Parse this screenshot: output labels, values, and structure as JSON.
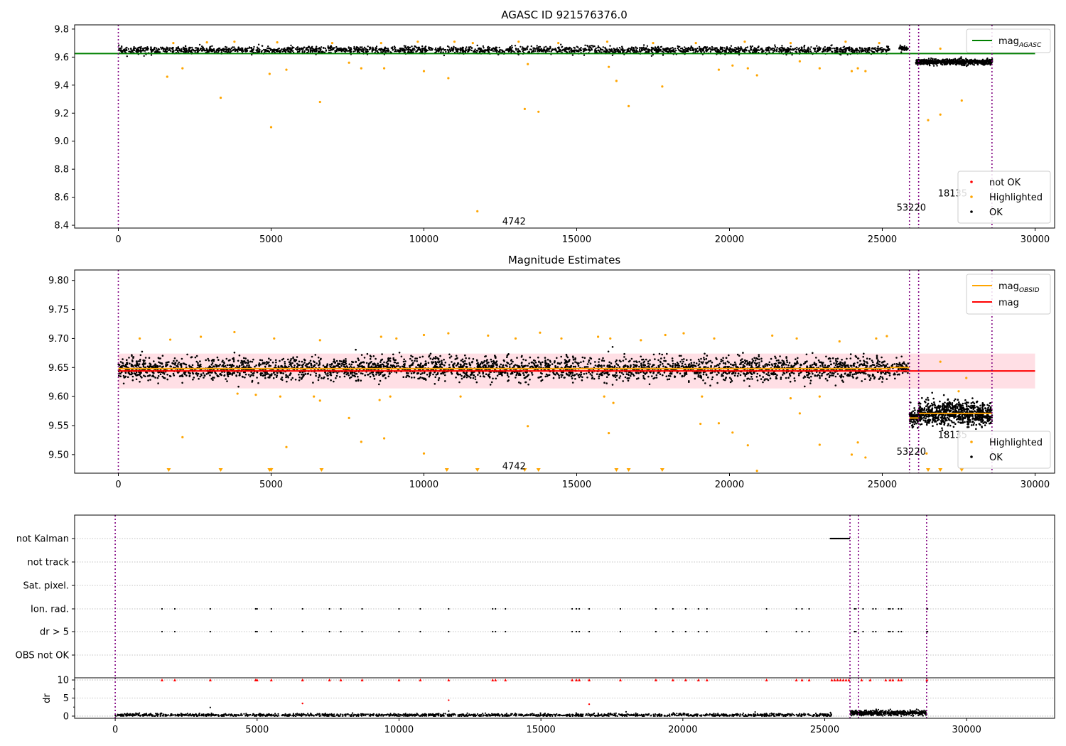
{
  "figure": {
    "colors": {
      "ok": "#000000",
      "highlighted": "#ffa500",
      "not_ok": "#ff0000",
      "agasc_line": "#008000",
      "obsid_line": "#ffa500",
      "mag_line": "#ff0000",
      "band": "#ffc0cb",
      "obsid_boundary": "#800080",
      "grid": "#b0b0b0"
    },
    "obsid_boundaries": [
      0,
      25890,
      26190,
      28590
    ]
  },
  "chart_data": [
    {
      "id": "top",
      "type": "scatter",
      "title": "AGASC ID 921576376.0",
      "xlim": [
        -1430,
        30640
      ],
      "ylim": [
        8.38,
        9.83
      ],
      "xticks": [
        0,
        5000,
        10000,
        15000,
        20000,
        25000,
        30000
      ],
      "yticks": [
        8.4,
        8.6,
        8.8,
        9.0,
        9.2,
        9.4,
        9.6,
        9.8
      ],
      "ytick_labels": [
        "8.4",
        "8.6",
        "8.8",
        "9.0",
        "9.2",
        "9.4",
        "9.6",
        "9.8"
      ],
      "legend_lines": {
        "placement": "upper-right",
        "entries": [
          {
            "label": "mag",
            "sub": "AGASC",
            "color": "#008000"
          }
        ]
      },
      "legend_points": {
        "placement": "lower-right",
        "entries": [
          {
            "label": "not OK",
            "color": "#ff0000"
          },
          {
            "label": "Highlighted",
            "color": "#ffa500"
          },
          {
            "label": "OK",
            "color": "#000000"
          }
        ]
      },
      "hlines": [
        {
          "y": 9.625,
          "x0": -1430,
          "x1": 30000,
          "color": "#008000"
        }
      ],
      "annotations": [
        {
          "text": "4742",
          "x": 12950,
          "y": 8.43
        },
        {
          "text": "53220",
          "x": 25950,
          "y": 8.53
        },
        {
          "text": "18135",
          "x": 27300,
          "y": 8.63
        }
      ],
      "ok_segments": [
        {
          "x0": 0,
          "x1": 25250,
          "center": 9.65,
          "spread": 0.028,
          "n": 2400
        },
        {
          "x0": 25550,
          "x1": 25850,
          "center": 9.665,
          "spread": 0.02,
          "n": 50
        },
        {
          "x0": 26100,
          "x1": 28600,
          "center": 9.565,
          "spread": 0.022,
          "n": 700
        }
      ],
      "highlighted": [
        [
          1600,
          9.46
        ],
        [
          2100,
          9.52
        ],
        [
          3350,
          9.31
        ],
        [
          4950,
          9.48
        ],
        [
          5000,
          9.1
        ],
        [
          5500,
          9.51
        ],
        [
          6600,
          9.28
        ],
        [
          7550,
          9.56
        ],
        [
          7950,
          9.52
        ],
        [
          8700,
          9.52
        ],
        [
          10000,
          9.5
        ],
        [
          10800,
          9.45
        ],
        [
          11750,
          8.5
        ],
        [
          13300,
          9.23
        ],
        [
          13400,
          9.55
        ],
        [
          13750,
          9.21
        ],
        [
          16050,
          9.53
        ],
        [
          16300,
          9.43
        ],
        [
          16700,
          9.25
        ],
        [
          17800,
          9.39
        ],
        [
          19650,
          9.51
        ],
        [
          20100,
          9.54
        ],
        [
          20600,
          9.52
        ],
        [
          20900,
          9.47
        ],
        [
          22300,
          9.57
        ],
        [
          22950,
          9.52
        ],
        [
          24000,
          9.5
        ],
        [
          24200,
          9.52
        ],
        [
          24450,
          9.5
        ],
        [
          26500,
          9.15
        ],
        [
          26900,
          9.19
        ],
        [
          26900,
          9.66
        ],
        [
          27600,
          9.29
        ],
        [
          1800,
          9.7
        ],
        [
          2900,
          9.705
        ],
        [
          3800,
          9.71
        ],
        [
          5200,
          9.705
        ],
        [
          7000,
          9.7
        ],
        [
          8600,
          9.7
        ],
        [
          9800,
          9.71
        ],
        [
          11000,
          9.71
        ],
        [
          11600,
          9.7
        ],
        [
          13100,
          9.71
        ],
        [
          14400,
          9.7
        ],
        [
          16000,
          9.71
        ],
        [
          17500,
          9.7
        ],
        [
          18900,
          9.7
        ],
        [
          20500,
          9.71
        ],
        [
          22000,
          9.7
        ],
        [
          23800,
          9.71
        ],
        [
          24900,
          9.7
        ]
      ]
    },
    {
      "id": "middle",
      "type": "scatter",
      "title": "Magnitude Estimates",
      "xlim": [
        -1430,
        30640
      ],
      "ylim": [
        9.468,
        9.818
      ],
      "xticks": [
        0,
        5000,
        10000,
        15000,
        20000,
        25000,
        30000
      ],
      "yticks": [
        9.5,
        9.55,
        9.6,
        9.65,
        9.7,
        9.75,
        9.8
      ],
      "ytick_labels": [
        "9.50",
        "9.55",
        "9.60",
        "9.65",
        "9.70",
        "9.75",
        "9.80"
      ],
      "legend_lines": {
        "placement": "upper-right",
        "entries": [
          {
            "label": "mag",
            "sub": "OBSID",
            "color": "#ffa500"
          },
          {
            "label": "mag",
            "sub": "",
            "color": "#ff0000"
          }
        ]
      },
      "legend_points": {
        "placement": "lower-right",
        "entries": [
          {
            "label": "Highlighted",
            "color": "#ffa500"
          },
          {
            "label": "OK",
            "color": "#000000"
          }
        ]
      },
      "band": {
        "y0": 9.614,
        "y1": 9.674,
        "x0": 0,
        "x1": 30000
      },
      "hlines": [
        {
          "y": 9.644,
          "x0": 0,
          "x1": 30000,
          "color": "#ff0000"
        },
        {
          "y": 9.648,
          "x0": 0,
          "x1": 25250,
          "color": "#ffa500"
        },
        {
          "y": 9.65,
          "x0": 25250,
          "x1": 25890,
          "color": "#ffa500"
        },
        {
          "y": 9.563,
          "x0": 25890,
          "x1": 26190,
          "color": "#ffa500"
        },
        {
          "y": 9.571,
          "x0": 26190,
          "x1": 28590,
          "color": "#ffa500"
        }
      ],
      "annotations": [
        {
          "text": "4742",
          "x": 12950,
          "y": 9.481
        },
        {
          "text": "53220",
          "x": 25950,
          "y": 9.506
        },
        {
          "text": "18135",
          "x": 27300,
          "y": 9.535
        }
      ],
      "ok_segments": [
        {
          "x0": 0,
          "x1": 25250,
          "center": 9.648,
          "spread": 0.022,
          "n": 3200
        },
        {
          "x0": 25300,
          "x1": 25850,
          "center": 9.65,
          "spread": 0.015,
          "n": 60
        },
        {
          "x0": 25890,
          "x1": 26190,
          "center": 9.563,
          "spread": 0.018,
          "n": 80
        },
        {
          "x0": 26190,
          "x1": 28600,
          "center": 9.571,
          "spread": 0.022,
          "n": 800
        }
      ],
      "highlighted": [
        [
          2100,
          9.53
        ],
        [
          3900,
          9.605
        ],
        [
          4500,
          9.603
        ],
        [
          5500,
          9.513
        ],
        [
          5300,
          9.6
        ],
        [
          6400,
          9.6
        ],
        [
          6600,
          9.593
        ],
        [
          7550,
          9.563
        ],
        [
          7950,
          9.522
        ],
        [
          8550,
          9.594
        ],
        [
          8700,
          9.528
        ],
        [
          8900,
          9.6
        ],
        [
          10000,
          9.502
        ],
        [
          11200,
          9.6
        ],
        [
          13400,
          9.549
        ],
        [
          15900,
          9.6
        ],
        [
          16050,
          9.537
        ],
        [
          16200,
          9.589
        ],
        [
          19050,
          9.553
        ],
        [
          19100,
          9.6
        ],
        [
          19650,
          9.554
        ],
        [
          20100,
          9.538
        ],
        [
          20600,
          9.516
        ],
        [
          22000,
          9.597
        ],
        [
          22300,
          9.571
        ],
        [
          22950,
          9.517
        ],
        [
          22950,
          9.6
        ],
        [
          24000,
          9.5
        ],
        [
          24200,
          9.521
        ],
        [
          24450,
          9.495
        ],
        [
          26450,
          9.502
        ],
        [
          26900,
          9.66
        ],
        [
          27500,
          9.609
        ],
        [
          27750,
          9.632
        ],
        [
          700,
          9.7
        ],
        [
          1700,
          9.698
        ],
        [
          2700,
          9.703
        ],
        [
          3800,
          9.711
        ],
        [
          5100,
          9.7
        ],
        [
          6600,
          9.697
        ],
        [
          8600,
          9.703
        ],
        [
          9100,
          9.7
        ],
        [
          10000,
          9.706
        ],
        [
          10800,
          9.709
        ],
        [
          12100,
          9.705
        ],
        [
          13000,
          9.7
        ],
        [
          13800,
          9.71
        ],
        [
          14500,
          9.7
        ],
        [
          15700,
          9.703
        ],
        [
          16100,
          9.7
        ],
        [
          17100,
          9.697
        ],
        [
          17900,
          9.706
        ],
        [
          18500,
          9.709
        ],
        [
          19500,
          9.7
        ],
        [
          21400,
          9.705
        ],
        [
          22200,
          9.7
        ],
        [
          23600,
          9.695
        ],
        [
          24800,
          9.7
        ],
        [
          25150,
          9.704
        ],
        [
          5000,
          9.475
        ],
        [
          20900,
          9.472
        ]
      ],
      "highlighted_markers": [
        1650,
        3350,
        4950,
        5000,
        6650,
        10750,
        11750,
        13300,
        13750,
        16300,
        16700,
        17800,
        26500,
        26900,
        27600
      ]
    },
    {
      "id": "flags",
      "type": "scatter",
      "xlim": [
        -1430,
        33100
      ],
      "category_labels": [
        "not Kalman",
        "not track",
        "Sat. pixel.",
        "Ion. rad.",
        "dr > 5",
        "OBS not OK"
      ],
      "flag_xs": [
        1650,
        2100,
        3350,
        4950,
        5000,
        5500,
        6600,
        7550,
        7950,
        8700,
        10000,
        10750,
        11750,
        13300,
        13400,
        13750,
        16100,
        16250,
        16350,
        16700,
        17800,
        19050,
        19650,
        20100,
        20550,
        20850,
        22950,
        24000,
        24200,
        24450,
        26050,
        26100,
        26350,
        26700,
        26800,
        27250,
        27300,
        27400,
        27600,
        27700,
        28600,
        28620
      ],
      "not_kalman_range": [
        25200,
        25870
      ]
    },
    {
      "id": "dr",
      "type": "scatter",
      "ylabel": "dr",
      "xlim": [
        -1430,
        33100
      ],
      "ylim": [
        -0.6,
        10.6
      ],
      "xticks": [
        0,
        5000,
        10000,
        15000,
        20000,
        25000,
        30000
      ],
      "yticks": [
        0,
        5,
        10
      ],
      "ytick_labels": [
        "0",
        "5",
        "10"
      ],
      "ok_segments": [
        {
          "x0": 0,
          "x1": 25250,
          "center": 0.3,
          "spread": 0.2,
          "n": 1600
        },
        {
          "x0": 25900,
          "x1": 28600,
          "center": 0.9,
          "spread": 0.35,
          "n": 500
        }
      ],
      "extra_points": [
        [
          3350,
          2.4
        ],
        [
          11750,
          1.4
        ],
        [
          18000,
          1.2
        ],
        [
          25200,
          1.0
        ]
      ],
      "red_points": [
        [
          6600,
          3.5
        ],
        [
          11750,
          4.4
        ],
        [
          16700,
          3.3
        ]
      ],
      "clipped_xs": [
        1650,
        2100,
        3350,
        4950,
        5000,
        5500,
        6600,
        7550,
        7950,
        8700,
        10000,
        10750,
        11750,
        13300,
        13400,
        13750,
        16100,
        16250,
        16350,
        16700,
        17800,
        19050,
        19650,
        20100,
        20550,
        20850,
        22950,
        24000,
        24200,
        24450,
        25250,
        25350,
        25450,
        25550,
        25650,
        25750,
        25850,
        26300,
        26600,
        27150,
        27300,
        27400,
        27600,
        27700,
        28600
      ]
    }
  ]
}
